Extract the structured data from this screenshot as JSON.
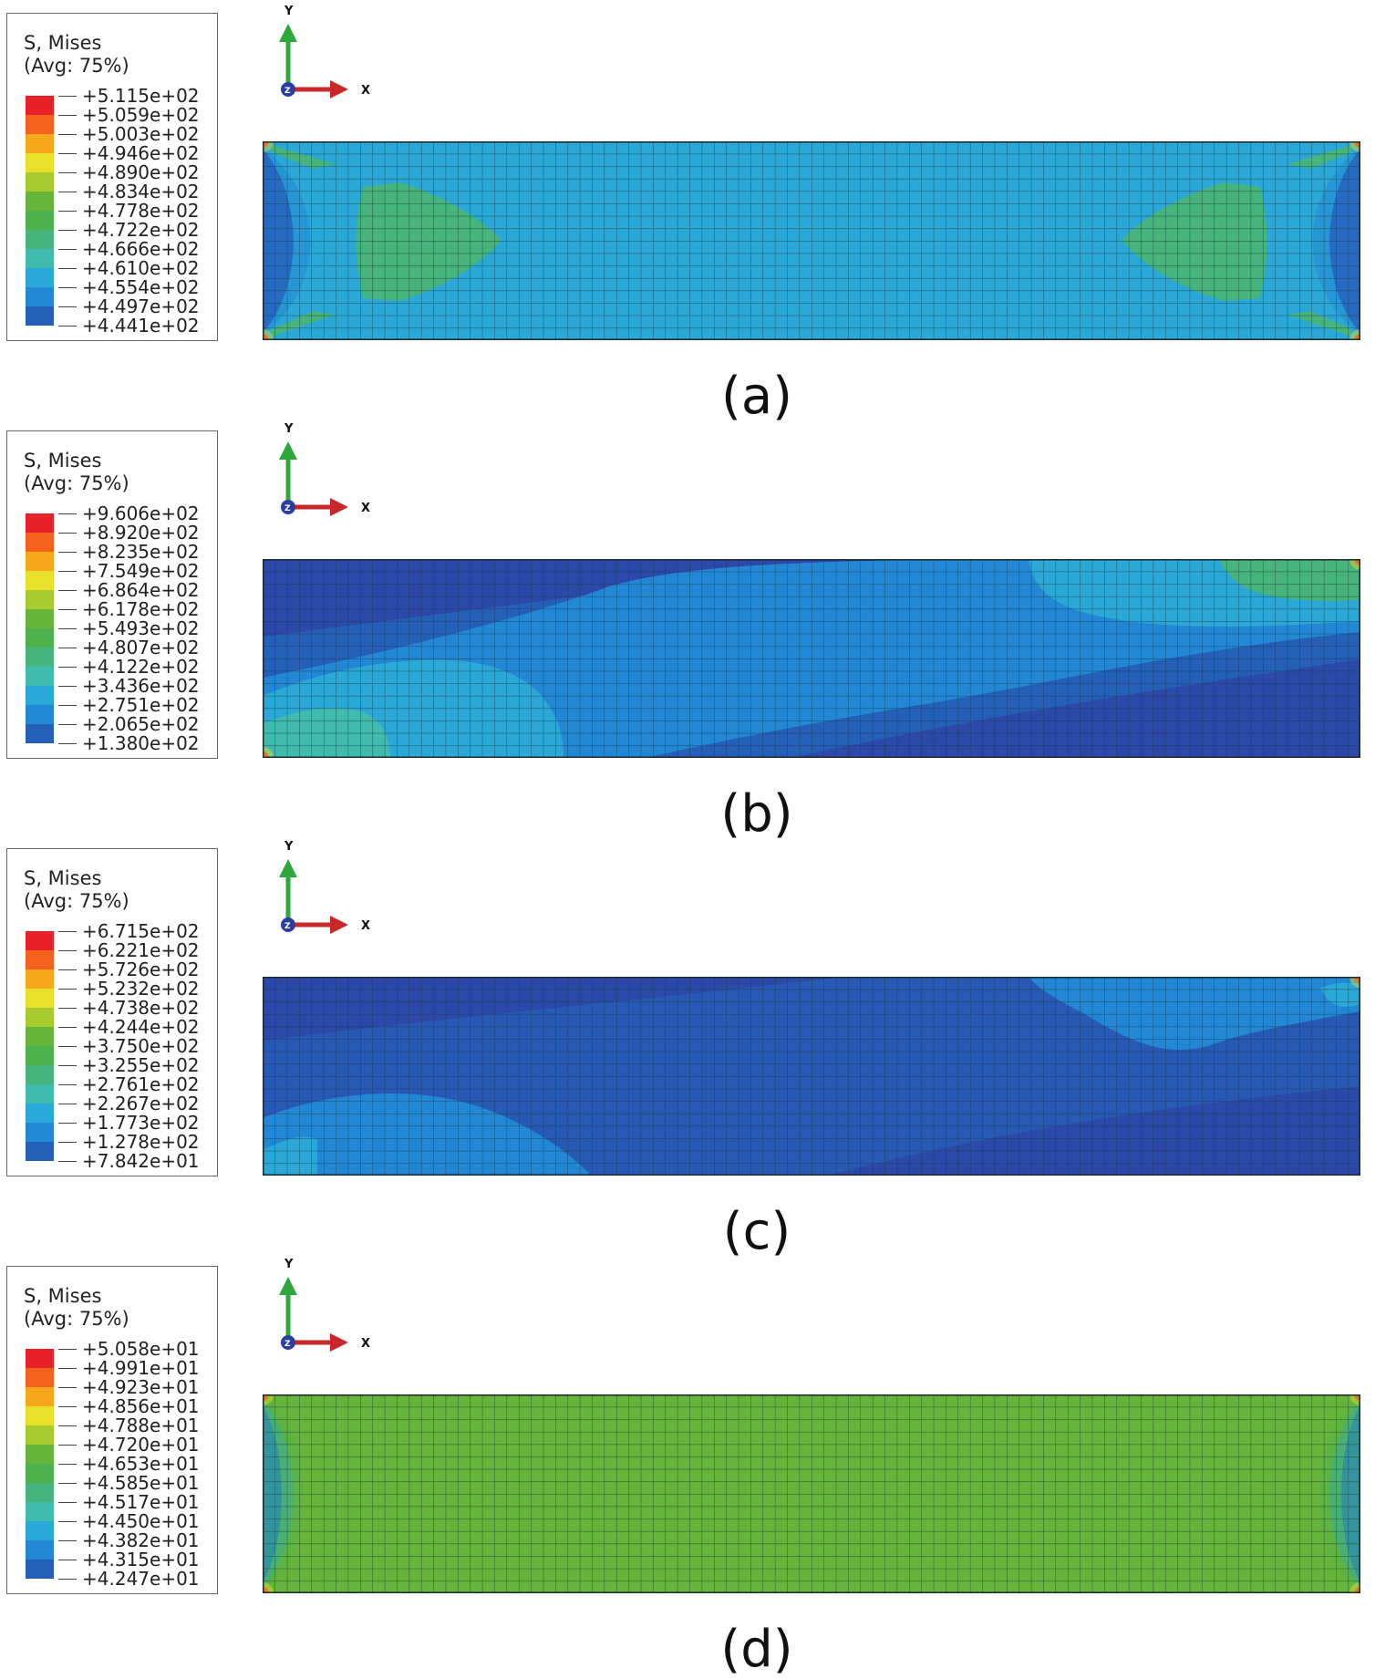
{
  "panels": [
    {
      "id": "a",
      "legend": {
        "title_line1": "S, Mises",
        "title_line2": "(Avg: 75%)",
        "values": [
          "+5.115e+02",
          "+5.059e+02",
          "+5.003e+02",
          "+4.946e+02",
          "+4.890e+02",
          "+4.834e+02",
          "+4.778e+02",
          "+4.722e+02",
          "+4.666e+02",
          "+4.610e+02",
          "+4.554e+02",
          "+4.497e+02",
          "+4.441e+02"
        ]
      },
      "axes": {
        "y": "Y",
        "x": "X",
        "z": "Z"
      },
      "caption": "(a)"
    },
    {
      "id": "b",
      "legend": {
        "title_line1": "S, Mises",
        "title_line2": "(Avg: 75%)",
        "values": [
          "+9.606e+02",
          "+8.920e+02",
          "+8.235e+02",
          "+7.549e+02",
          "+6.864e+02",
          "+6.178e+02",
          "+5.493e+02",
          "+4.807e+02",
          "+4.122e+02",
          "+3.436e+02",
          "+2.751e+02",
          "+2.065e+02",
          "+1.380e+02"
        ]
      },
      "axes": {
        "y": "Y",
        "x": "X",
        "z": "Z"
      },
      "caption": "(b)"
    },
    {
      "id": "c",
      "legend": {
        "title_line1": "S, Mises",
        "title_line2": "(Avg: 75%)",
        "values": [
          "+6.715e+02",
          "+6.221e+02",
          "+5.726e+02",
          "+5.232e+02",
          "+4.738e+02",
          "+4.244e+02",
          "+3.750e+02",
          "+3.255e+02",
          "+2.761e+02",
          "+2.267e+02",
          "+1.773e+02",
          "+1.278e+02",
          "+7.842e+01"
        ]
      },
      "axes": {
        "y": "Y",
        "x": "X",
        "z": "Z"
      },
      "caption": "(c)"
    },
    {
      "id": "d",
      "legend": {
        "title_line1": "S, Mises",
        "title_line2": "(Avg: 75%)",
        "values": [
          "+5.058e+01",
          "+4.991e+01",
          "+4.923e+01",
          "+4.856e+01",
          "+4.788e+01",
          "+4.720e+01",
          "+4.653e+01",
          "+4.585e+01",
          "+4.517e+01",
          "+4.450e+01",
          "+4.382e+01",
          "+4.315e+01",
          "+4.247e+01"
        ]
      },
      "axes": {
        "y": "Y",
        "x": "X",
        "z": "Z"
      },
      "caption": "(d)"
    }
  ],
  "colors": {
    "scale": [
      "#e8202a",
      "#f2621c",
      "#f5a81c",
      "#e8e02a",
      "#a8cc30",
      "#66b53a",
      "#4db24e",
      "#46b47c",
      "#3fbcae",
      "#2aa8d8",
      "#2288d6",
      "#2560b8",
      "#2c48a8"
    ],
    "mesh_line": "#1e3a3a"
  }
}
